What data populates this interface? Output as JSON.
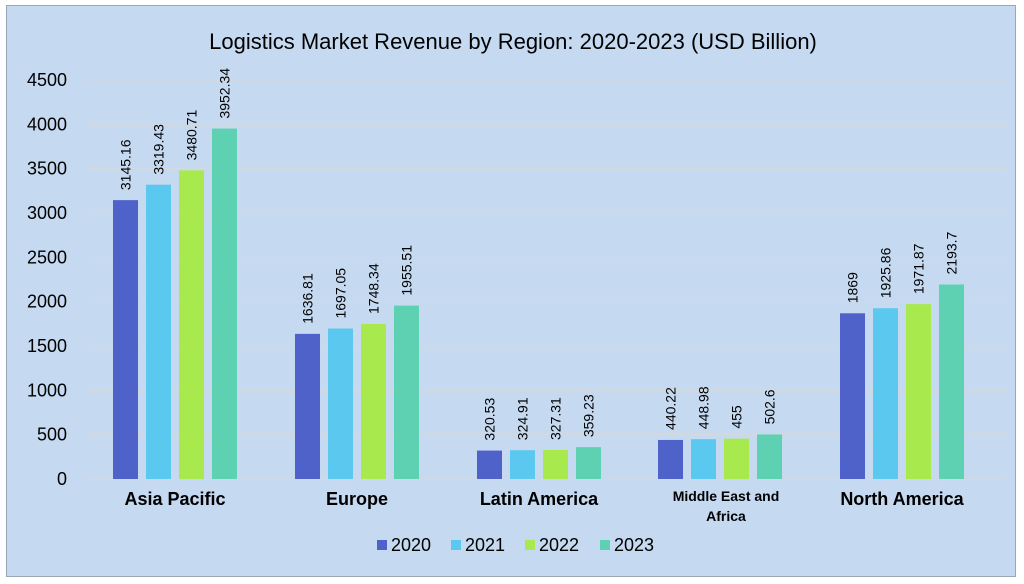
{
  "chart_data": {
    "type": "bar",
    "title": "Logistics Market Revenue by Region: 2020-2023 (USD Billion)",
    "categories": [
      "Asia Pacific",
      "Europe",
      "Latin America",
      "Middle East and Africa",
      "North America"
    ],
    "series": [
      {
        "name": "2020",
        "color": "#4f62c9",
        "values": [
          3145.16,
          1636.81,
          320.53,
          440.22,
          1869
        ]
      },
      {
        "name": "2021",
        "color": "#5bc8f0",
        "values": [
          3319.43,
          1697.05,
          324.91,
          448.98,
          1925.86
        ]
      },
      {
        "name": "2022",
        "color": "#a8e94e",
        "values": [
          3480.71,
          1748.34,
          327.31,
          455,
          1971.87
        ]
      },
      {
        "name": "2023",
        "color": "#5fd1b3",
        "values": [
          3952.34,
          1955.51,
          359.23,
          502.6,
          2193.7
        ]
      }
    ],
    "data_labels": [
      [
        "3145.16",
        "1636.81",
        "320.53",
        "440.22",
        "1869"
      ],
      [
        "3319.43",
        "1697.05",
        "324.91",
        "448.98",
        "1925.86"
      ],
      [
        "3480.71",
        "1748.34",
        "327.31",
        "455",
        "1971.87"
      ],
      [
        "3952.34",
        "1955.51",
        "359.23",
        "502.6",
        "2193.7"
      ]
    ],
    "ylim": [
      0,
      4500
    ],
    "yticks": [
      "0",
      "500",
      "1000",
      "1500",
      "2000",
      "2500",
      "3000",
      "3500",
      "4000",
      "4500"
    ],
    "xlabel": "",
    "ylabel": "",
    "grid": true,
    "legend_position": "bottom"
  },
  "colors": {
    "background": "#c5d9f1",
    "gridline": "#d9d9d9"
  }
}
